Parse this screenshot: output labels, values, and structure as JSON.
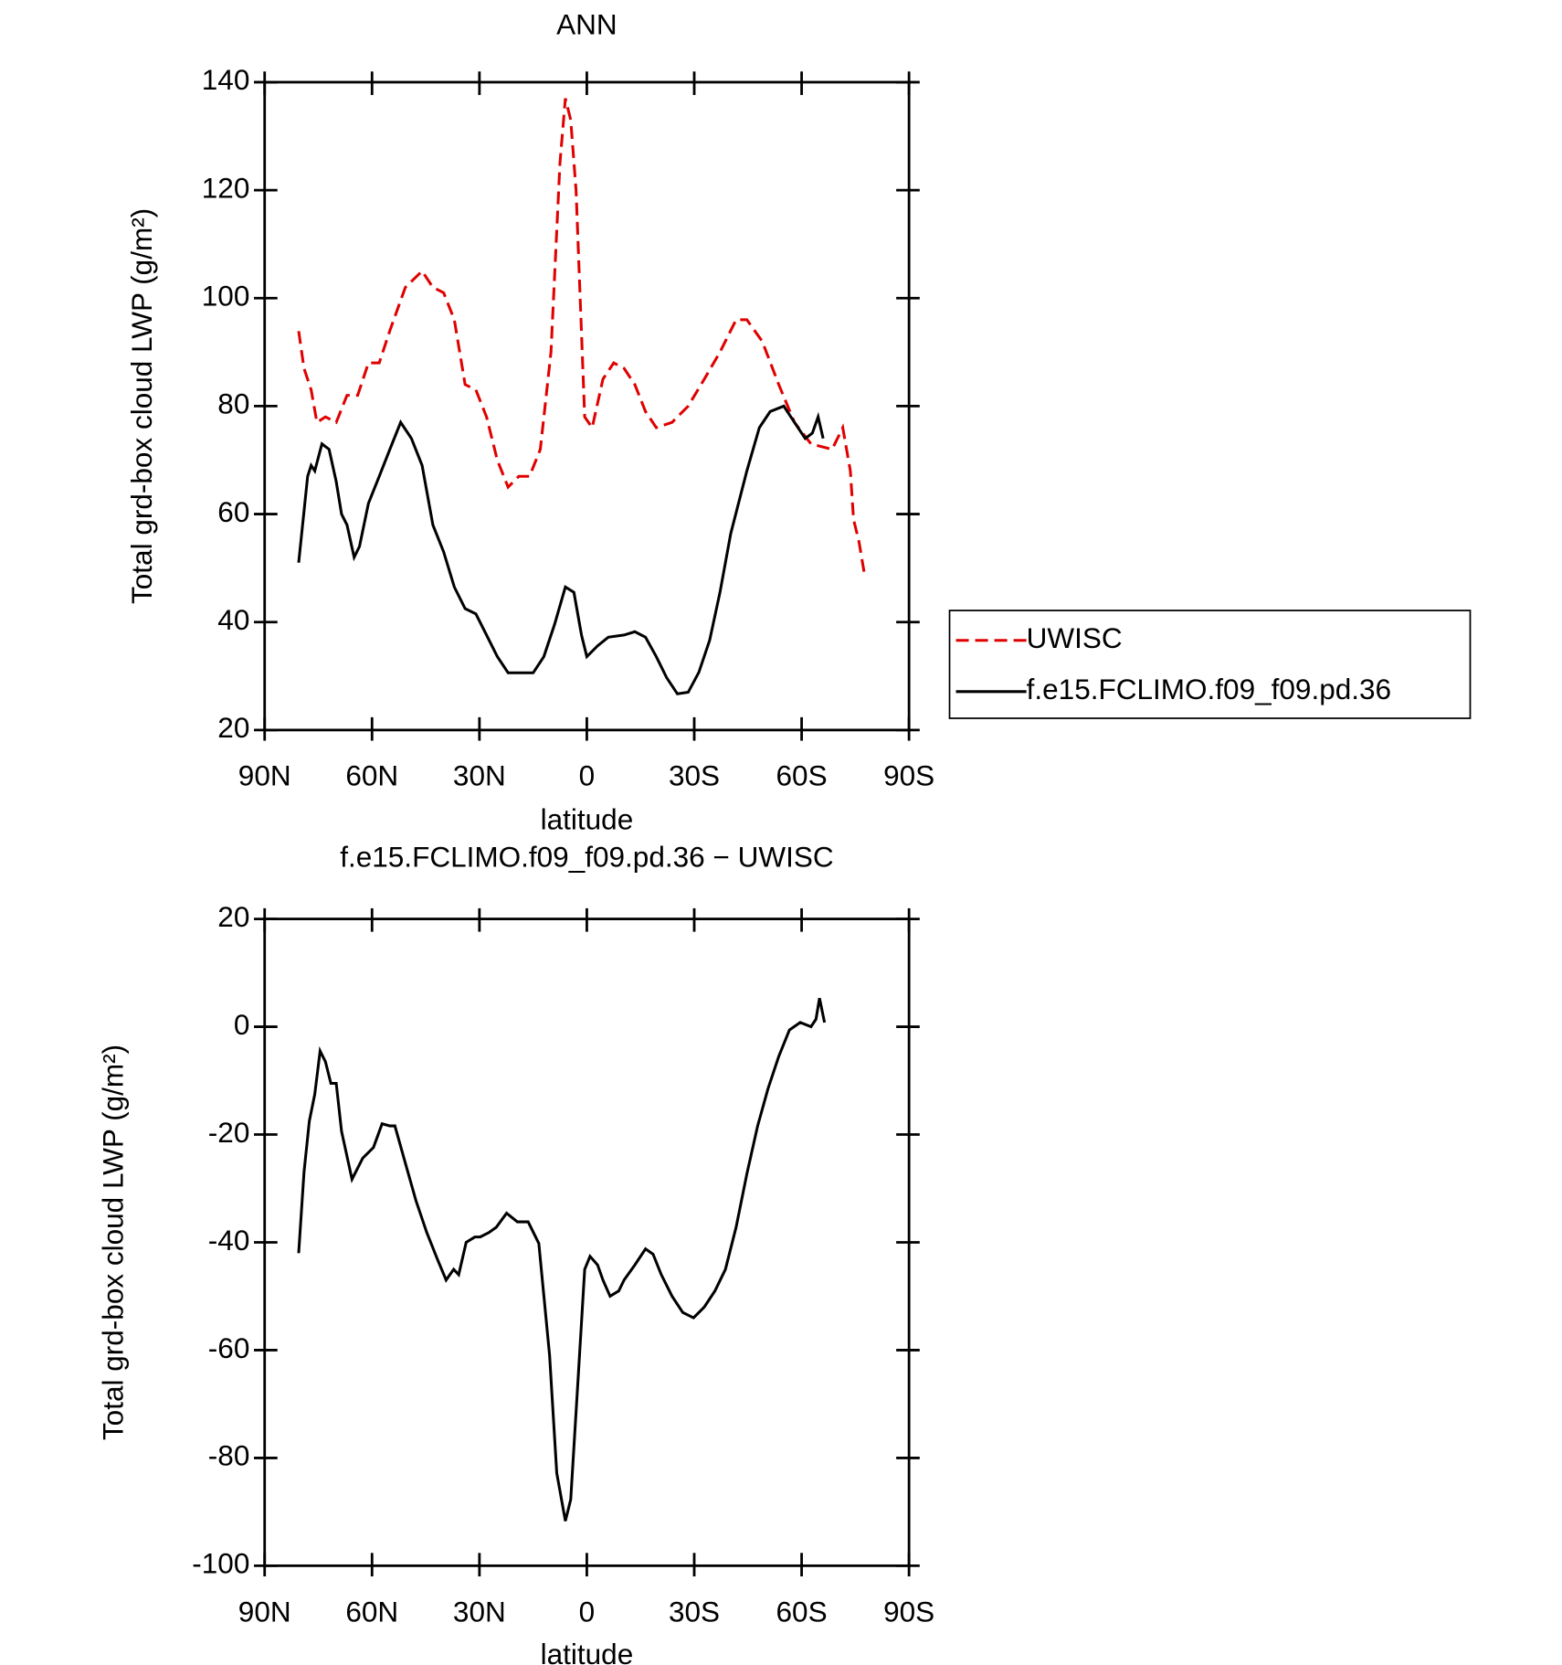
{
  "chart_data": [
    {
      "type": "line",
      "title": "ANN",
      "xlabel": "latitude",
      "ylabel": "Total grd-box cloud LWP (g/m²)",
      "xlim": [
        90,
        -90
      ],
      "xticks": [
        {
          "value": 90,
          "label": "90N"
        },
        {
          "value": 60,
          "label": "60N"
        },
        {
          "value": 30,
          "label": "30N"
        },
        0,
        {
          "value": -30,
          "label": "30S"
        },
        {
          "value": -60,
          "label": "60S"
        },
        {
          "value": -90,
          "label": "90S"
        }
      ],
      "ylim": [
        20,
        140
      ],
      "yticks": [
        20,
        40,
        60,
        80,
        100,
        120,
        140
      ],
      "legend": "right",
      "series": [
        {
          "name": "UWISC",
          "color": "#e00000",
          "dashed": true,
          "x": [
            80.5,
            79,
            77,
            75.4,
            73,
            70,
            67,
            64,
            61,
            58,
            55,
            50.7,
            46,
            43,
            40,
            37,
            34,
            31,
            28,
            25,
            22,
            19,
            16,
            13,
            10,
            7.5,
            6,
            4.5,
            3,
            0.6,
            -1.5,
            -4.5,
            -7.5,
            -10.4,
            -13.4,
            -16.4,
            -19.4,
            -23.8,
            -28.3,
            -32.8,
            -37.2,
            -41.7,
            -44.7,
            -49,
            -53.6,
            -58,
            -62.6,
            -65.5,
            -68.5,
            -71.5,
            -73.6,
            -74.5,
            -76,
            -77.5
          ],
          "values": [
            93.9,
            87,
            83,
            77,
            78,
            77,
            82,
            82,
            88,
            88,
            94,
            102,
            105,
            102,
            101,
            96,
            84,
            83,
            78,
            70,
            65,
            67,
            67,
            72,
            90,
            125,
            137,
            133,
            120,
            78,
            76,
            85,
            88,
            87,
            84,
            79,
            76,
            77,
            80,
            85,
            90,
            96,
            96,
            92,
            84,
            77,
            73,
            72.5,
            72,
            76,
            68,
            59,
            55,
            49
          ]
        },
        {
          "name": "f.e15.FCLIMO.f09_f09.pd.36",
          "color": "#000000",
          "dashed": false,
          "x": [
            80.5,
            78,
            77,
            76,
            74,
            72,
            70,
            68.5,
            67,
            65,
            63.5,
            61,
            58,
            55,
            52,
            49,
            46,
            43,
            40,
            37,
            34,
            31,
            28,
            25,
            22,
            19,
            15,
            12,
            9,
            6,
            3.6,
            1.5,
            0,
            -3,
            -6,
            -10.4,
            -13.4,
            -16.4,
            -19.4,
            -22.3,
            -25.3,
            -28.3,
            -31.3,
            -34.3,
            -37.2,
            -40.2,
            -44.7,
            -48.2,
            -51.2,
            -55,
            -58,
            -61,
            -63,
            -64.6,
            -66
          ],
          "values": [
            51,
            67,
            69,
            68,
            73,
            72,
            66,
            60,
            58,
            52,
            54,
            62,
            67,
            72,
            77,
            74,
            69,
            58,
            53,
            46.5,
            42.5,
            41.5,
            37.6,
            33.6,
            30.6,
            30.6,
            30.6,
            33.6,
            39.6,
            46.5,
            45.5,
            37.6,
            33.6,
            35.6,
            37.2,
            37.6,
            38.2,
            37.2,
            33.6,
            29.7,
            26.7,
            27,
            30.7,
            36.6,
            45.5,
            56.4,
            68,
            76,
            79,
            80,
            77,
            74,
            75,
            78,
            74
          ]
        }
      ]
    },
    {
      "type": "line",
      "title": "f.e15.FCLIMO.f09_f09.pd.36 − UWISC",
      "xlabel": "latitude",
      "ylabel": "Total grd-box cloud LWP (g/m²)",
      "xlim": [
        90,
        -90
      ],
      "xticks": [
        {
          "value": 90,
          "label": "90N"
        },
        {
          "value": 60,
          "label": "60N"
        },
        {
          "value": 30,
          "label": "30N"
        },
        0,
        {
          "value": -30,
          "label": "30S"
        },
        {
          "value": -60,
          "label": "60S"
        },
        {
          "value": -90,
          "label": "90S"
        }
      ],
      "ylim": [
        -100,
        20
      ],
      "yticks": [
        -100,
        -80,
        -60,
        -40,
        -20,
        0,
        20
      ],
      "series": [
        {
          "color": "#000000",
          "dashed": false,
          "x": [
            80.5,
            79,
            77.5,
            76,
            74.5,
            73,
            71.5,
            70,
            68.5,
            65.6,
            62.6,
            59.6,
            57.2,
            55,
            53.6,
            50.7,
            47.7,
            44.7,
            41.7,
            39.3,
            37.2,
            35.8,
            33.7,
            31.3,
            29.8,
            27.4,
            25.3,
            22.4,
            19.4,
            16.4,
            13.4,
            10.4,
            8.4,
            6,
            4.5,
            2.4,
            0.6,
            -0.9,
            -3,
            -4.5,
            -6.5,
            -8.9,
            -10.4,
            -13.4,
            -16.4,
            -18.5,
            -20.8,
            -23.8,
            -26.8,
            -29.8,
            -32.8,
            -35.8,
            -38.7,
            -41.7,
            -44.7,
            -47.7,
            -50.6,
            -53.6,
            -56.6,
            -59.6,
            -62.6,
            -64,
            -65,
            -66.4
          ],
          "values": [
            -42,
            -27,
            -17.5,
            -12.5,
            -4.5,
            -6.5,
            -10.5,
            -10.5,
            -19.4,
            -28.3,
            -24.4,
            -22.4,
            -18,
            -18.4,
            -18.4,
            -25.3,
            -32.3,
            -38.2,
            -43.2,
            -47,
            -45,
            -46,
            -40,
            -39,
            -39,
            -38.2,
            -37.2,
            -34.6,
            -36.2,
            -36.2,
            -40.2,
            -61,
            -82.8,
            -91.7,
            -87.7,
            -65,
            -45,
            -42.6,
            -44.2,
            -47,
            -50,
            -49,
            -47,
            -44.2,
            -41.2,
            -42.2,
            -46,
            -50,
            -53,
            -54,
            -52,
            -49,
            -45,
            -37.2,
            -27.3,
            -18.4,
            -11.5,
            -5.5,
            -0.6,
            0.8,
            0,
            1.4,
            5.3,
            0.8
          ]
        }
      ]
    }
  ]
}
